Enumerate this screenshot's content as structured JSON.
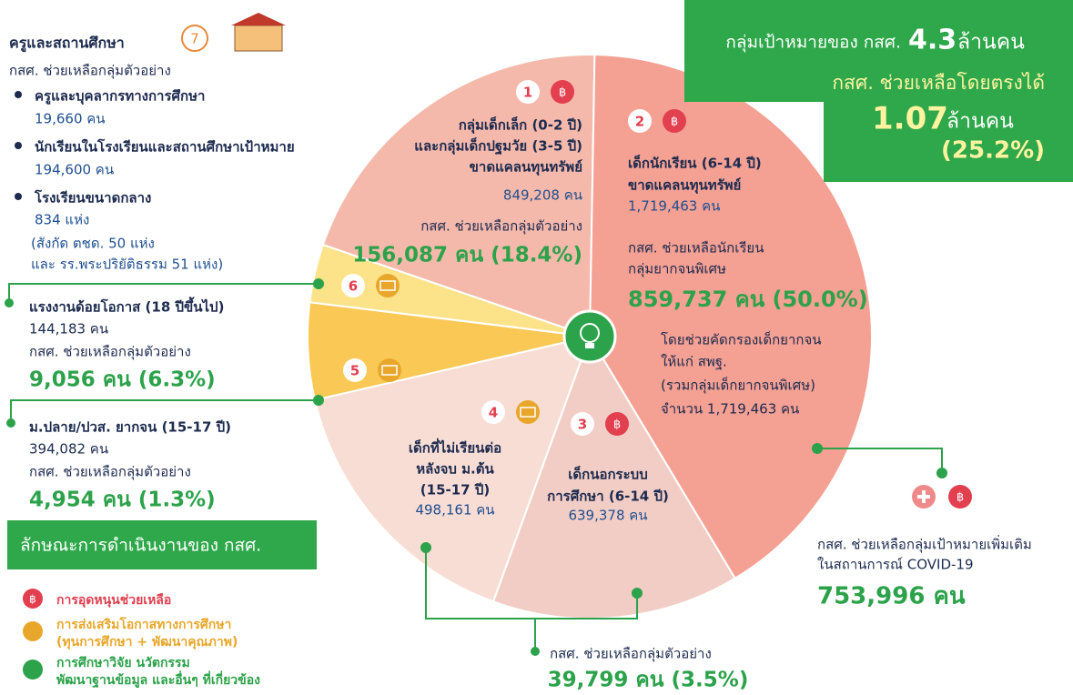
{
  "header": {
    "target_label": "กลุ่มเป้าหมายของ กสศ.",
    "target_value": "4.3",
    "target_unit": "ล้านคน",
    "direct_label": "กสศ. ช่วยเหลือโดยตรงได้",
    "direct_value": "1.07",
    "direct_unit": "ล้านคน",
    "direct_pct": "(25.2%)"
  },
  "baht_symbol": "฿",
  "teachers": {
    "title": "ครูและสถานศึกษา",
    "number": "7",
    "subtitle": "กสศ. ช่วยเหลือกลุ่มตัวอย่าง",
    "items": [
      {
        "label": "ครูและบุคลากรทางการศึกษา",
        "value": "19,660 คน"
      },
      {
        "label": "นักเรียนในโรงเรียนและสถานศึกษาเป้าหมาย",
        "value": "194,600 คน"
      },
      {
        "label": "โรงเรียนขนาดกลาง",
        "value": "834 แห่ง",
        "note": [
          "(สังกัด ตชด. 50 แห่ง",
          "และ รร.พระปริยัติธรรม 51 แห่ง)"
        ]
      }
    ]
  },
  "groups": [
    {
      "number": "1",
      "title": [
        "กลุ่มเด็กเล็ก (0-2 ปี)",
        "และกลุ่มเด็กปฐมวัย (3-5 ปี)",
        "ขาดแคลนทุนทรัพย์"
      ],
      "count": "849,208 คน",
      "help_label": [
        "กสศ. ช่วยเหลือกลุ่มตัวอย่าง"
      ],
      "help_value": "156,087 คน (18.4%)"
    },
    {
      "number": "2",
      "title": [
        "เด็กนักเรียน (6-14 ปี)",
        "ขาดแคลนทุนทรัพย์"
      ],
      "count": "1,719,463 คน",
      "help_label": [
        "กสศ. ช่วยเหลือนักเรียน",
        "กลุ่มยากจนพิเศษ"
      ],
      "help_value": "859,737 คน (50.0%)",
      "note": [
        "โดยช่วยคัดกรองเด็กยากจน",
        "ให้แก่ สพฐ.",
        "(รวมกลุ่มเด็กยากจนพิเศษ)",
        "จำนวน 1,719,463 คน"
      ]
    },
    {
      "number": "3",
      "title": [
        "เด็กนอกระบบ",
        "การศึกษา (6-14 ปี)"
      ],
      "count": "639,378 คน"
    },
    {
      "number": "4",
      "title": [
        "เด็กที่ไม่เรียนต่อ",
        "หลังจบ ม.ต้น",
        "(15-17 ปี)"
      ],
      "count": "498,161 คน"
    },
    {
      "number": "5",
      "title": [
        "ม.ปลาย/ปวส. ยากจน (15-17 ปี)"
      ],
      "count": "394,082 คน",
      "help_label": [
        "กสศ. ช่วยเหลือกลุ่มตัวอย่าง"
      ],
      "help_value": "4,954 คน (1.3%)"
    },
    {
      "number": "6",
      "title": [
        "แรงงานด้อยโอกาส (18 ปีขึ้นไป)"
      ],
      "count": "144,183 คน",
      "help_label": [
        "กสศ. ช่วยเหลือกลุ่มตัวอย่าง"
      ],
      "help_value": "9,056 คน (6.3%)"
    }
  ],
  "shared_help": {
    "label": "กสศ. ช่วยเหลือกลุ่มตัวอย่าง",
    "value": "39,799 คน (3.5%)"
  },
  "covid": {
    "label": [
      "กสศ. ช่วยเหลือกลุ่มเป้าหมายเพิ่มเติม",
      "ในสถานการณ์ COVID-19"
    ],
    "value": "753,996 คน"
  },
  "legend": {
    "title": "ลักษณะการดำเนินงานของ กสศ.",
    "items": [
      [
        "การอุดหนุนช่วยเหลือ"
      ],
      [
        "การส่งเสริมโอกาสทางการศึกษา",
        "(ทุนการศึกษา + พัฒนาคุณภาพ)"
      ],
      [
        "การศึกษาวิจัย นวัตกรรม",
        "พัฒนาฐานข้อมูล และอื่นๆ ที่เกี่ยวข้อง"
      ]
    ]
  }
}
